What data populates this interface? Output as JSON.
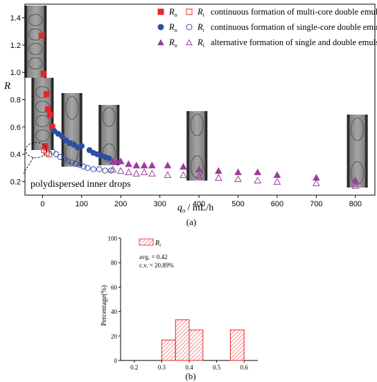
{
  "chart_data": [
    {
      "type": "scatter",
      "panel_label": "(a)",
      "xlabel_main": "q",
      "xlabel_sub": "o",
      "xlabel_rest": "/ mL/h",
      "ylabel": "R",
      "xlim": [
        -45,
        850
      ],
      "ylim": [
        0.1,
        1.5
      ],
      "xticks": [
        0,
        100,
        200,
        300,
        400,
        500,
        600,
        700,
        800
      ],
      "yticks": [
        0.2,
        0.4,
        0.6,
        0.8,
        1.0,
        1.2,
        1.4
      ],
      "annotation": "polydispersed inner drops",
      "legend": [
        {
          "sym_o": "R",
          "sub_o": "o",
          "sym_i": "R",
          "sub_i": "i",
          "text": "continuous formation of multi-core double emulsions"
        },
        {
          "sym_o": "R",
          "sub_o": "o",
          "sym_i": "R",
          "sub_i": "i",
          "text": "continuous formation of single-core double emulsions"
        },
        {
          "sym_o": "R",
          "sub_o": "o",
          "sym_i": "R",
          "sub_i": "i",
          "text": "alternative formation of single and double emulsions"
        }
      ],
      "series": [
        {
          "role": "Ro multi-core",
          "marker": "square",
          "filled": true,
          "color": "#e8242b",
          "points": [
            [
              -2,
              1.27
            ],
            [
              3,
              0.99
            ],
            [
              10,
              0.84
            ],
            [
              14,
              0.73
            ],
            [
              19,
              0.69
            ],
            [
              25,
              0.6
            ],
            [
              7,
              0.46
            ]
          ]
        },
        {
          "role": "Ri multi-core",
          "marker": "square",
          "filled": false,
          "color": "#e8242b",
          "points": [
            [
              4,
              0.43
            ],
            [
              10,
              0.41
            ],
            [
              17,
              0.4
            ]
          ]
        },
        {
          "role": "Ro single-core",
          "marker": "circle",
          "filled": true,
          "color": "#2c4fa6",
          "points": [
            [
              30,
              0.57
            ],
            [
              40,
              0.55
            ],
            [
              50,
              0.53
            ],
            [
              60,
              0.5
            ],
            [
              70,
              0.48
            ],
            [
              80,
              0.47
            ],
            [
              90,
              0.45
            ],
            [
              100,
              0.46
            ],
            [
              120,
              0.43
            ],
            [
              130,
              0.41
            ],
            [
              140,
              0.4
            ],
            [
              150,
              0.39
            ],
            [
              160,
              0.38
            ],
            [
              170,
              0.37
            ]
          ]
        },
        {
          "role": "Ri single-core",
          "marker": "circle",
          "filled": false,
          "color": "#2c4fa6",
          "points": [
            [
              25,
              0.42
            ],
            [
              35,
              0.4
            ],
            [
              45,
              0.38
            ],
            [
              55,
              0.36
            ],
            [
              65,
              0.35
            ],
            [
              75,
              0.34
            ],
            [
              85,
              0.33
            ],
            [
              95,
              0.32
            ],
            [
              105,
              0.31
            ],
            [
              115,
              0.3
            ],
            [
              130,
              0.29
            ],
            [
              145,
              0.29
            ],
            [
              160,
              0.28
            ],
            [
              175,
              0.28
            ]
          ]
        },
        {
          "role": "Ro alternative",
          "marker": "triangle",
          "filled": true,
          "color": "#9b3d9e",
          "points": [
            [
              180,
              0.35
            ],
            [
              190,
              0.35
            ],
            [
              200,
              0.35
            ],
            [
              220,
              0.33
            ],
            [
              240,
              0.32
            ],
            [
              260,
              0.32
            ],
            [
              280,
              0.32
            ],
            [
              320,
              0.32
            ],
            [
              360,
              0.31
            ],
            [
              400,
              0.29
            ],
            [
              450,
              0.28
            ],
            [
              500,
              0.27
            ],
            [
              550,
              0.27
            ],
            [
              600,
              0.25
            ],
            [
              700,
              0.23
            ],
            [
              800,
              0.21
            ]
          ]
        },
        {
          "role": "Ri alternative",
          "marker": "triangle",
          "filled": false,
          "color": "#9b3d9e",
          "points": [
            [
              180,
              0.29
            ],
            [
              200,
              0.28
            ],
            [
              220,
              0.27
            ],
            [
              240,
              0.26
            ],
            [
              260,
              0.27
            ],
            [
              280,
              0.26
            ],
            [
              320,
              0.25
            ],
            [
              360,
              0.25
            ],
            [
              400,
              0.24
            ],
            [
              450,
              0.23
            ],
            [
              500,
              0.22
            ],
            [
              550,
              0.21
            ],
            [
              600,
              0.2
            ],
            [
              700,
              0.19
            ],
            [
              800,
              0.17
            ]
          ]
        }
      ],
      "insets": [
        {
          "center_x": -18,
          "label": "multi-core droplet image"
        },
        {
          "center_x": 0,
          "label": "polydispersed droplet image"
        },
        {
          "center_x": 75,
          "label": "single-core droplet image"
        },
        {
          "center_x": 170,
          "label": "single-core droplet image"
        },
        {
          "center_x": 395,
          "label": "alternating droplet image"
        },
        {
          "center_x": 805,
          "label": "alternating droplet image"
        }
      ]
    },
    {
      "type": "bar",
      "panel_label": "(b)",
      "ylabel": "Percentage(%)",
      "xlim": [
        0.15,
        0.65
      ],
      "ylim": [
        0,
        100
      ],
      "xticks": [
        0.2,
        0.3,
        0.4,
        0.5,
        0.6
      ],
      "yticks": [
        0,
        20,
        40,
        60,
        80,
        100
      ],
      "legend_sym": "R",
      "legend_sub": "i",
      "stats": [
        "avg. = 0.42",
        "c.v. = 20.89%"
      ],
      "bins": [
        {
          "from": 0.3,
          "to": 0.35,
          "value": 16.7
        },
        {
          "from": 0.35,
          "to": 0.4,
          "value": 33.3
        },
        {
          "from": 0.4,
          "to": 0.45,
          "value": 25.0
        },
        {
          "from": 0.55,
          "to": 0.6,
          "value": 25.0
        }
      ],
      "color": "#e8242b"
    }
  ]
}
